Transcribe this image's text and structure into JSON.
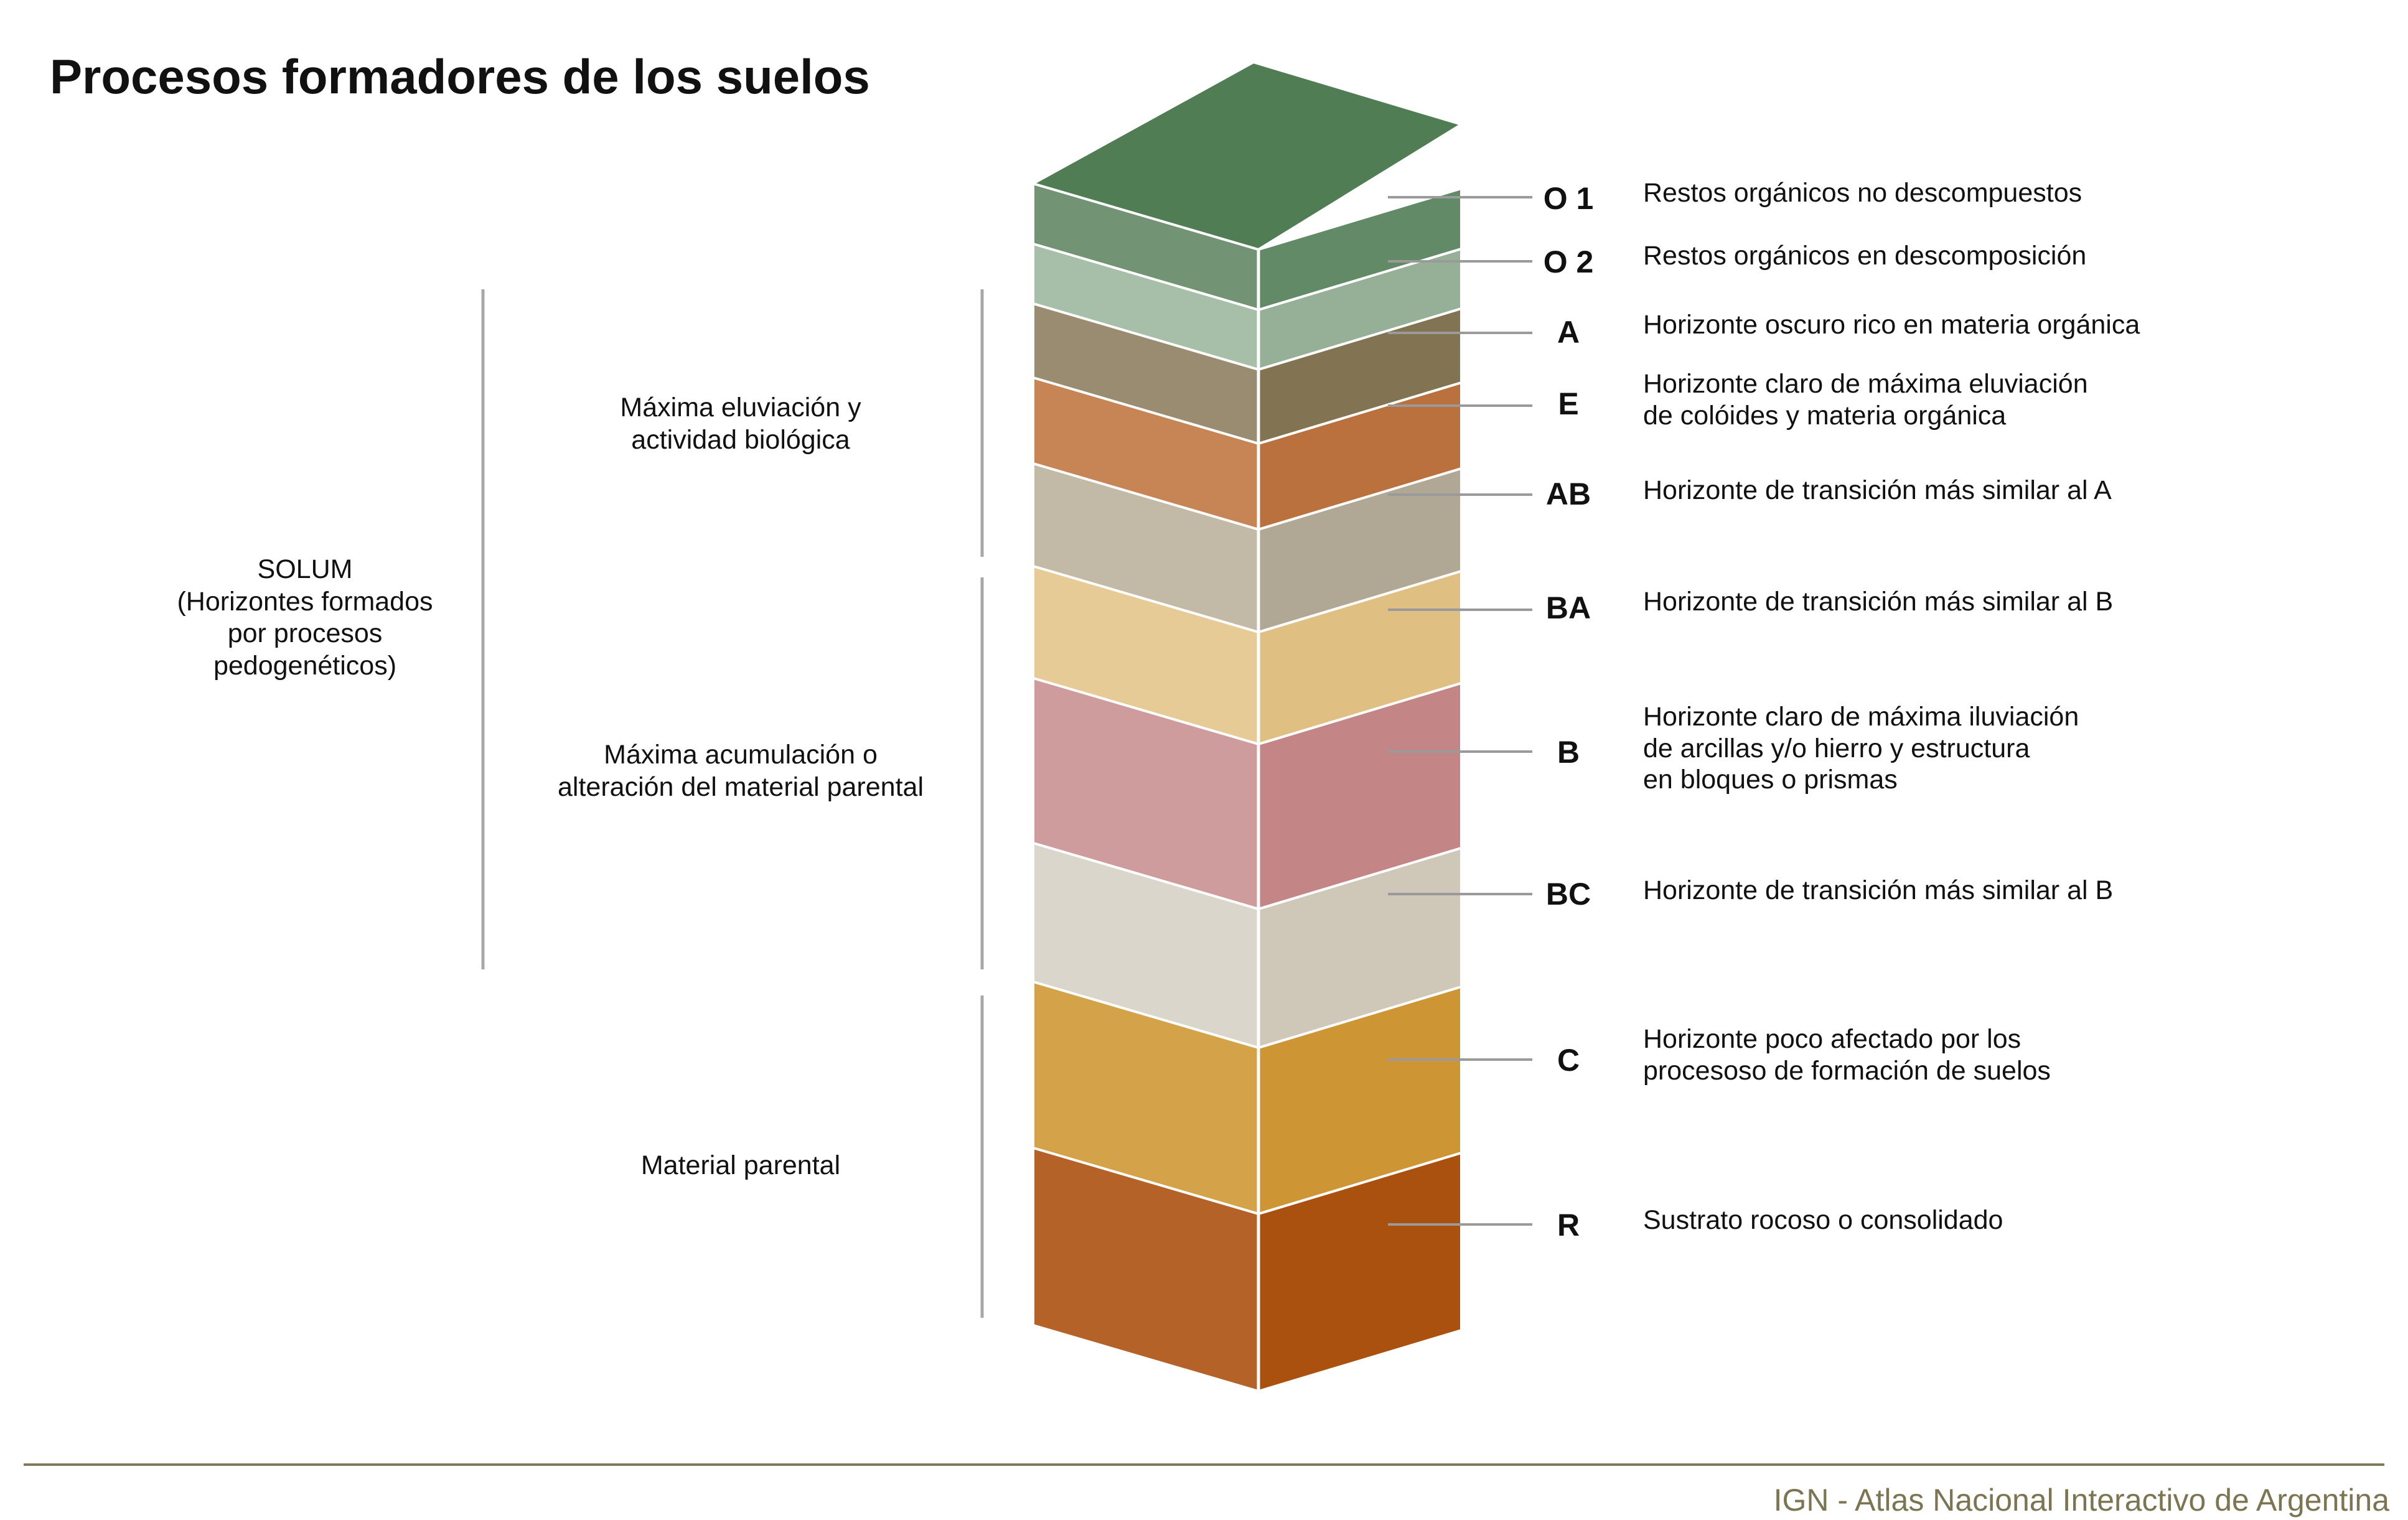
{
  "title": "Procesos formadores de los suelos",
  "groups": {
    "solum": [
      "SOLUM",
      "(Horizontes formados",
      "por procesos",
      "pedogenéticos)"
    ],
    "eluviacion": [
      "Máxima eluviación y",
      "actividad biológica"
    ],
    "acumulacion": [
      "Máxima acumulación o",
      "alteración del material parental"
    ],
    "parental": [
      "Material parental"
    ]
  },
  "horizons": [
    {
      "code": "O 1",
      "desc": [
        "Restos orgánicos no descompuestos"
      ],
      "color_front": "#739474",
      "color_side": "#628a66"
    },
    {
      "code": "O 2",
      "desc": [
        "Restos orgánicos en descomposición"
      ],
      "color_front": "#a7bea9",
      "color_side": "#96b098"
    },
    {
      "code": "A",
      "desc": [
        "Horizonte oscuro rico en materia orgánica"
      ],
      "color_front": "#998c71",
      "color_side": "#827452"
    },
    {
      "code": "E",
      "desc": [
        "Horizonte claro de máxima eluviación",
        "de colóides y materia orgánica"
      ],
      "color_front": "#c78556",
      "color_side": "#bb713e"
    },
    {
      "code": "AB",
      "desc": [
        "Horizonte de transición más similar al A"
      ],
      "color_front": "#c2b9a7",
      "color_side": "#b1a795"
    },
    {
      "code": "BA",
      "desc": [
        "Horizonte de transición más similar al B"
      ],
      "color_front": "#e6cb97",
      "color_side": "#e0c082"
    },
    {
      "code": "B",
      "desc": [
        "Horizonte claro de máxima iluviación",
        "de arcillas y/o hierro y estructura",
        "en bloques o prismas"
      ],
      "color_front": "#ce9c9c",
      "color_side": "#c38585"
    },
    {
      "code": "BC",
      "desc": [
        "Horizonte de transición más similar al B"
      ],
      "color_front": "#dad6cb",
      "color_side": "#cfc7b8"
    },
    {
      "code": "C",
      "desc": [
        "Horizonte poco afectado por los",
        "procesoso de formación de suelos"
      ],
      "color_front": "#d4a349",
      "color_side": "#cd9533"
    },
    {
      "code": "R",
      "desc": [
        "Sustrato rocoso o consolidado"
      ],
      "color_front": "#b46228",
      "color_side": "#ab510f"
    }
  ],
  "top_color": "#517d55",
  "footer": "IGN - Atlas Nacional Interactivo de Argentina"
}
